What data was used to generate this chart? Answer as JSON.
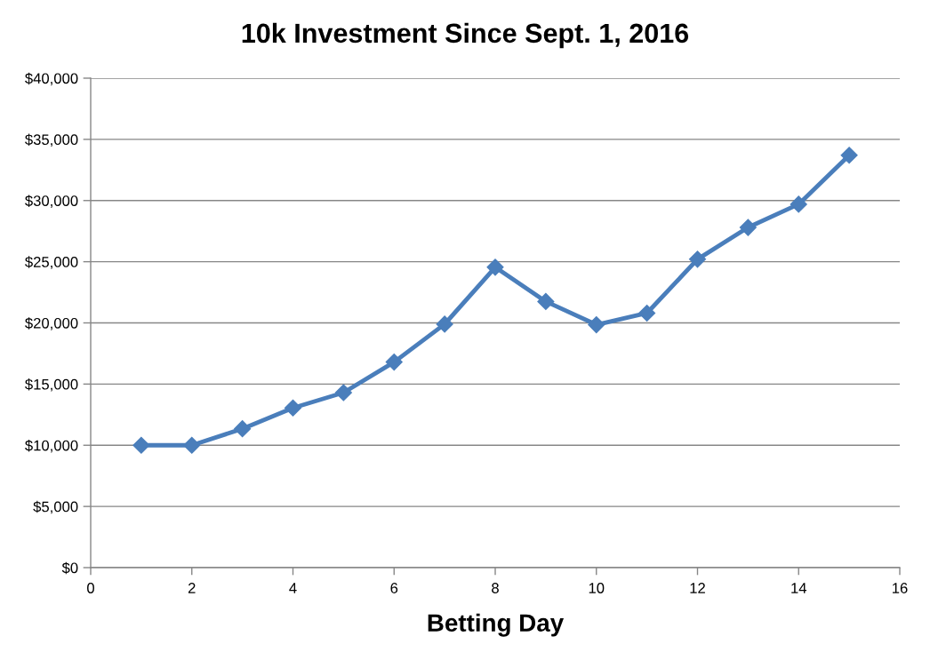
{
  "chart_data": {
    "type": "line",
    "title": "10k Investment Since Sept. 1, 2016",
    "xlabel": "Betting Day",
    "x": [
      1,
      2,
      3,
      4,
      5,
      6,
      7,
      8,
      9,
      10,
      11,
      12,
      13,
      14,
      15
    ],
    "series": [
      {
        "color": "#4a7ebb",
        "values": [
          10000,
          10000,
          11350,
          13050,
          14300,
          16800,
          19900,
          24550,
          21750,
          19850,
          20800,
          25200,
          27800,
          29700,
          33700
        ]
      }
    ],
    "marker": "diamond",
    "line_style": "solid",
    "xlim": [
      0,
      16
    ],
    "xticks": [
      0,
      2,
      4,
      6,
      8,
      10,
      12,
      14,
      16
    ],
    "ylim": [
      0,
      40000
    ],
    "yticks": [
      {
        "value": 0,
        "label": "$0"
      },
      {
        "value": 5000,
        "label": "$5,000"
      },
      {
        "value": 10000,
        "label": "$10,000"
      },
      {
        "value": 15000,
        "label": "$15,000"
      },
      {
        "value": 20000,
        "label": "$20,000"
      },
      {
        "value": 25000,
        "label": "$25,000"
      },
      {
        "value": 30000,
        "label": "$30,000"
      },
      {
        "value": 35000,
        "label": "$35,000"
      },
      {
        "value": 40000,
        "label": "$40,000"
      }
    ],
    "grid": "y"
  }
}
